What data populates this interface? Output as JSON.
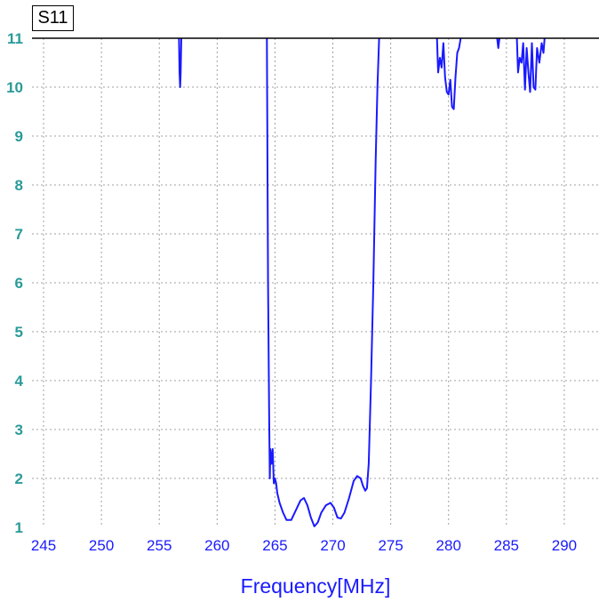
{
  "chart_data": {
    "type": "line",
    "title": "S11",
    "xlabel": "Frequency[MHz]",
    "ylabel": "",
    "xlim": [
      244,
      293
    ],
    "ylim": [
      1,
      11
    ],
    "x_ticks": [
      "245",
      "250",
      "255",
      "260",
      "265",
      "270",
      "275",
      "280",
      "285",
      "290"
    ],
    "y_ticks": [
      "1",
      "2",
      "3",
      "4",
      "5",
      "6",
      "7",
      "8",
      "9",
      "10",
      "11"
    ],
    "grid": true,
    "colors": {
      "line": "#1a1aff",
      "x_text": "#1a1aff",
      "y_text": "#2a9a9a",
      "grid": "#a0a0a0"
    },
    "series": [
      {
        "segments": [
          [
            [
              256.7,
              11
            ],
            [
              256.75,
              10.3
            ],
            [
              256.8,
              10.0
            ],
            [
              256.85,
              10.3
            ],
            [
              256.9,
              11
            ]
          ],
          [
            [
              264.3,
              11
            ],
            [
              264.4,
              6
            ],
            [
              264.5,
              3.2
            ],
            [
              264.55,
              2.0
            ],
            [
              264.6,
              2.6
            ],
            [
              264.7,
              2.3
            ],
            [
              264.8,
              2.6
            ],
            [
              264.9,
              1.9
            ],
            [
              265.0,
              2.0
            ],
            [
              265.1,
              1.9
            ],
            [
              265.2,
              1.7
            ],
            [
              265.4,
              1.5
            ],
            [
              265.7,
              1.3
            ],
            [
              266.0,
              1.15
            ],
            [
              266.4,
              1.15
            ],
            [
              266.8,
              1.35
            ],
            [
              267.2,
              1.55
            ],
            [
              267.5,
              1.6
            ],
            [
              267.8,
              1.45
            ],
            [
              268.1,
              1.2
            ],
            [
              268.4,
              1.02
            ],
            [
              268.7,
              1.1
            ],
            [
              269.0,
              1.3
            ],
            [
              269.4,
              1.45
            ],
            [
              269.8,
              1.5
            ],
            [
              270.1,
              1.4
            ],
            [
              270.4,
              1.2
            ],
            [
              270.7,
              1.18
            ],
            [
              271.0,
              1.3
            ],
            [
              271.4,
              1.6
            ],
            [
              271.8,
              1.95
            ],
            [
              272.1,
              2.05
            ],
            [
              272.4,
              2.0
            ],
            [
              272.6,
              1.85
            ],
            [
              272.8,
              1.75
            ],
            [
              272.95,
              1.8
            ],
            [
              273.1,
              2.3
            ],
            [
              273.3,
              4
            ],
            [
              273.5,
              6
            ],
            [
              273.7,
              8.5
            ],
            [
              273.85,
              10
            ],
            [
              274.0,
              11
            ]
          ],
          [
            [
              279.0,
              11
            ],
            [
              279.1,
              10.3
            ],
            [
              279.25,
              10.6
            ],
            [
              279.4,
              10.4
            ],
            [
              279.55,
              10.9
            ],
            [
              279.7,
              10.2
            ],
            [
              279.85,
              9.9
            ],
            [
              280.0,
              9.85
            ],
            [
              280.15,
              10.15
            ],
            [
              280.3,
              9.6
            ],
            [
              280.45,
              9.55
            ],
            [
              280.6,
              10.2
            ],
            [
              280.75,
              10.7
            ],
            [
              280.9,
              10.8
            ],
            [
              281.05,
              11
            ]
          ],
          [
            [
              284.2,
              11
            ],
            [
              284.3,
              10.8
            ],
            [
              284.4,
              11
            ]
          ],
          [
            [
              285.9,
              11
            ],
            [
              286.0,
              10.3
            ],
            [
              286.15,
              10.6
            ],
            [
              286.3,
              10.5
            ],
            [
              286.45,
              10.9
            ],
            [
              286.6,
              9.95
            ],
            [
              286.75,
              10.8
            ],
            [
              286.9,
              10.3
            ],
            [
              287.05,
              9.9
            ],
            [
              287.2,
              10.9
            ],
            [
              287.35,
              10.0
            ],
            [
              287.5,
              9.95
            ],
            [
              287.65,
              10.8
            ],
            [
              287.85,
              10.5
            ],
            [
              288.05,
              10.9
            ],
            [
              288.2,
              10.7
            ],
            [
              288.3,
              11
            ]
          ]
        ]
      }
    ]
  }
}
